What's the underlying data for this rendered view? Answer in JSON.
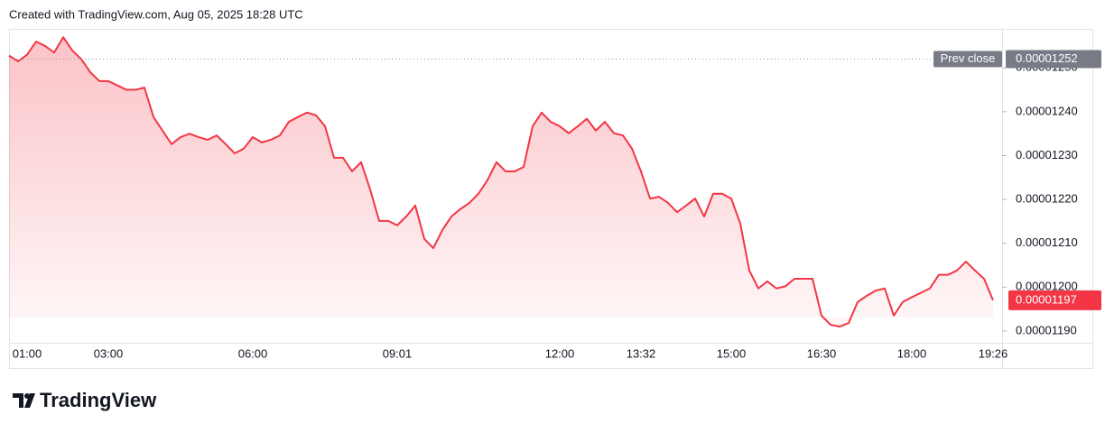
{
  "header": "Created with TradingView.com, Aug 05, 2025 18:28 UTC",
  "logo": "TradingView",
  "chart_data": {
    "type": "area",
    "color": "#f23645",
    "categories": [
      null,
      null,
      "01:00",
      null,
      null,
      null,
      null,
      null,
      null,
      null,
      null,
      "03:00",
      null,
      null,
      null,
      null,
      null,
      null,
      null,
      null,
      null,
      null,
      null,
      null,
      null,
      null,
      null,
      "06:00",
      null,
      null,
      null,
      null,
      null,
      null,
      null,
      null,
      null,
      null,
      null,
      null,
      null,
      null,
      null,
      "09:01",
      null,
      null,
      null,
      null,
      null,
      null,
      null,
      null,
      null,
      null,
      null,
      null,
      null,
      null,
      null,
      null,
      null,
      "12:00",
      null,
      null,
      null,
      null,
      null,
      null,
      null,
      null,
      "13:32",
      null,
      null,
      null,
      null,
      null,
      null,
      null,
      null,
      null,
      "15:00",
      null,
      null,
      null,
      null,
      null,
      null,
      null,
      null,
      null,
      "16:30",
      null,
      null,
      null,
      null,
      null,
      null,
      null,
      null,
      null,
      "18:00",
      null,
      null,
      null,
      null,
      null,
      null,
      null,
      null,
      "19:26"
    ],
    "values": [
      1.2528e-05,
      1.2515e-05,
      1.253e-05,
      1.256e-05,
      1.255e-05,
      1.2535e-05,
      1.257e-05,
      1.254e-05,
      1.252e-05,
      1.249e-05,
      1.247e-05,
      1.247e-05,
      1.246e-05,
      1.245e-05,
      1.245e-05,
      1.2455e-05,
      1.2388e-05,
      1.2357e-05,
      1.2326e-05,
      1.2342e-05,
      1.235e-05,
      1.2342e-05,
      1.2336e-05,
      1.2346e-05,
      1.2326e-05,
      1.2305e-05,
      1.2316e-05,
      1.2342e-05,
      1.233e-05,
      1.2336e-05,
      1.2346e-05,
      1.2377e-05,
      1.2388e-05,
      1.2398e-05,
      1.2392e-05,
      1.2367e-05,
      1.2295e-05,
      1.2295e-05,
      1.2264e-05,
      1.2285e-05,
      1.2223e-05,
      1.2151e-05,
      1.2151e-05,
      1.2141e-05,
      1.2161e-05,
      1.2186e-05,
      1.211e-05,
      1.2089e-05,
      1.213e-05,
      1.2161e-05,
      1.2178e-05,
      1.2192e-05,
      1.2213e-05,
      1.2244e-05,
      1.2285e-05,
      1.2264e-05,
      1.2264e-05,
      1.2274e-05,
      1.2367e-05,
      1.2398e-05,
      1.2377e-05,
      1.2367e-05,
      1.2351e-05,
      1.2367e-05,
      1.2384e-05,
      1.2357e-05,
      1.2377e-05,
      1.2351e-05,
      1.2346e-05,
      1.2316e-05,
      1.2264e-05,
      1.2202e-05,
      1.2206e-05,
      1.2192e-05,
      1.2171e-05,
      1.2186e-05,
      1.2202e-05,
      1.2161e-05,
      1.2213e-05,
      1.2213e-05,
      1.2202e-05,
      1.2145e-05,
      1.2038e-05,
      1.1997e-05,
      1.2013e-05,
      1.1997e-05,
      1.2002e-05,
      1.2019e-05,
      1.2019e-05,
      1.2019e-05,
      1.1935e-05,
      1.1914e-05,
      1.191e-05,
      1.1918e-05,
      1.1966e-05,
      1.198e-05,
      1.1992e-05,
      1.1997e-05,
      1.1935e-05,
      1.1966e-05,
      1.1977e-05,
      1.1987e-05,
      1.1997e-05,
      1.2028e-05,
      1.2028e-05,
      1.2038e-05,
      1.2058e-05,
      1.2038e-05,
      1.2019e-05,
      1.197e-05
    ],
    "ylim": [
      1.1873e-05,
      1.2589e-05
    ],
    "yticks": [
      {
        "value": 1.19e-05,
        "label": "0.00001190"
      },
      {
        "value": 1.2e-05,
        "label": "0.00001200"
      },
      {
        "value": 1.21e-05,
        "label": "0.00001210"
      },
      {
        "value": 1.22e-05,
        "label": "0.00001220"
      },
      {
        "value": 1.23e-05,
        "label": "0.00001230"
      },
      {
        "value": 1.24e-05,
        "label": "0.00001240"
      },
      {
        "value": 1.25e-05,
        "label": "0.00001250"
      }
    ],
    "prev_close": {
      "name": "Prev close",
      "value": 1.252e-05,
      "value_label": "0.00001252"
    },
    "last_price": {
      "value": 1.197e-05,
      "value_label": "0.00001197"
    }
  }
}
